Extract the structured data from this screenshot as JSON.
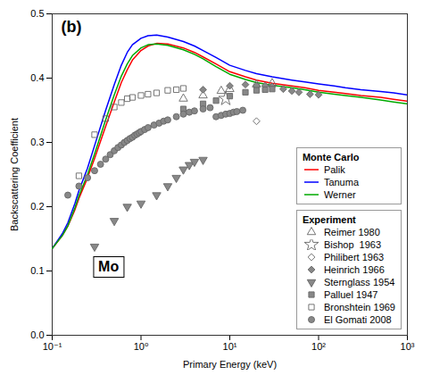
{
  "chart_data": {
    "type": "line",
    "xlabel": "Primary Energy (keV)",
    "ylabel": "Backscattering Coefficient",
    "annotations": [
      "(b)",
      "Mo"
    ],
    "log": "x",
    "xlim": [
      0.1,
      1000
    ],
    "xticks": [
      {
        "value": 0.1,
        "label": "10⁻¹"
      },
      {
        "value": 1,
        "label": "10⁰"
      },
      {
        "value": 10,
        "label": "10¹"
      },
      {
        "value": 100,
        "label": "10²"
      },
      {
        "value": 1000,
        "label": "10³"
      }
    ],
    "ylim": [
      0.0,
      0.5
    ],
    "yticks": [
      {
        "value": 0,
        "label": "0.0"
      },
      0.1,
      0.2,
      0.3,
      0.4,
      0.5
    ],
    "grid": false,
    "legend": "lower right",
    "series": [
      {
        "name": "Palik",
        "group": "Monte Carlo",
        "type": "line",
        "color": "#ff0000",
        "x": [
          0.1,
          0.13,
          0.15,
          0.18,
          0.2,
          0.25,
          0.3,
          0.4,
          0.5,
          0.6,
          0.7,
          0.8,
          1.0,
          1.2,
          1.5,
          2.0,
          3.0,
          4.0,
          5.0,
          7.0,
          10.0,
          15.0,
          20.0,
          30.0,
          50.0,
          70.0,
          100.0,
          150.0,
          200.0,
          300.0,
          500.0,
          700.0,
          1000.0
        ],
        "values": [
          0.135,
          0.155,
          0.17,
          0.195,
          0.213,
          0.245,
          0.275,
          0.325,
          0.363,
          0.393,
          0.413,
          0.428,
          0.443,
          0.45,
          0.454,
          0.453,
          0.447,
          0.44,
          0.433,
          0.422,
          0.41,
          0.402,
          0.397,
          0.392,
          0.388,
          0.385,
          0.381,
          0.378,
          0.376,
          0.373,
          0.37,
          0.367,
          0.364
        ]
      },
      {
        "name": "Tanuma",
        "group": "Monte Carlo",
        "type": "line",
        "color": "#0000ff",
        "x": [
          0.1,
          0.13,
          0.15,
          0.18,
          0.2,
          0.25,
          0.3,
          0.4,
          0.5,
          0.6,
          0.7,
          0.8,
          1.0,
          1.2,
          1.5,
          2.0,
          3.0,
          4.0,
          5.0,
          7.0,
          10.0,
          15.0,
          20.0,
          30.0,
          50.0,
          70.0,
          100.0,
          150.0,
          200.0,
          300.0,
          500.0,
          700.0,
          1000.0
        ],
        "values": [
          0.135,
          0.158,
          0.175,
          0.205,
          0.225,
          0.26,
          0.295,
          0.35,
          0.39,
          0.42,
          0.44,
          0.452,
          0.462,
          0.466,
          0.467,
          0.464,
          0.457,
          0.45,
          0.443,
          0.432,
          0.42,
          0.412,
          0.407,
          0.402,
          0.397,
          0.394,
          0.391,
          0.388,
          0.385,
          0.382,
          0.379,
          0.377,
          0.374
        ]
      },
      {
        "name": "Werner",
        "group": "Monte Carlo",
        "type": "line",
        "color": "#00aa00",
        "x": [
          0.1,
          0.13,
          0.15,
          0.18,
          0.2,
          0.25,
          0.3,
          0.4,
          0.5,
          0.6,
          0.7,
          0.8,
          1.0,
          1.2,
          1.5,
          2.0,
          3.0,
          4.0,
          5.0,
          7.0,
          10.0,
          15.0,
          20.0,
          30.0,
          50.0,
          70.0,
          100.0,
          150.0,
          200.0,
          300.0,
          500.0,
          700.0,
          1000.0
        ],
        "values": [
          0.135,
          0.155,
          0.17,
          0.198,
          0.217,
          0.25,
          0.282,
          0.335,
          0.374,
          0.403,
          0.422,
          0.435,
          0.447,
          0.452,
          0.453,
          0.451,
          0.444,
          0.437,
          0.43,
          0.418,
          0.406,
          0.398,
          0.393,
          0.389,
          0.385,
          0.382,
          0.378,
          0.375,
          0.373,
          0.37,
          0.366,
          0.363,
          0.36
        ]
      },
      {
        "name": "Reimer 1980",
        "group": "Experiment",
        "type": "scatter",
        "marker": "triangle-up-open",
        "color": "#666666",
        "x": [
          3.0,
          5.0,
          8.0,
          10.0,
          20.0,
          30.0
        ],
        "values": [
          0.368,
          0.373,
          0.38,
          0.383,
          0.39,
          0.392
        ]
      },
      {
        "name": "Bishop  1963",
        "group": "Experiment",
        "type": "scatter",
        "marker": "star-open",
        "color": "#666666",
        "x": [
          9.0
        ],
        "values": [
          0.368
        ]
      },
      {
        "name": "Philibert 1963",
        "group": "Experiment",
        "type": "scatter",
        "marker": "diamond-open",
        "color": "#666666",
        "x": [
          20.0
        ],
        "values": [
          0.333
        ]
      },
      {
        "name": "Heinrich 1966",
        "group": "Experiment",
        "type": "scatter",
        "marker": "diamond",
        "color": "#888888",
        "x": [
          5.0,
          10.0,
          15.0,
          20.0,
          25.0,
          30.0,
          40.0,
          50.0,
          60.0,
          80.0,
          100.0
        ],
        "values": [
          0.382,
          0.388,
          0.39,
          0.388,
          0.388,
          0.387,
          0.383,
          0.38,
          0.378,
          0.375,
          0.374
        ]
      },
      {
        "name": "Sternglass 1954",
        "group": "Experiment",
        "type": "scatter",
        "marker": "triangle-down",
        "color": "#888888",
        "x": [
          0.3,
          0.5,
          0.7,
          1.0,
          1.5,
          2.0,
          2.5,
          3.0,
          3.5,
          4.0,
          5.0
        ],
        "values": [
          0.138,
          0.178,
          0.2,
          0.205,
          0.218,
          0.232,
          0.245,
          0.258,
          0.265,
          0.27,
          0.273
        ]
      },
      {
        "name": "Palluel 1947",
        "group": "Experiment",
        "type": "scatter",
        "marker": "square",
        "color": "#888888",
        "x": [
          3.0,
          5.0,
          7.0,
          10.0,
          15.0,
          20.0,
          25.0,
          30.0
        ],
        "values": [
          0.352,
          0.36,
          0.365,
          0.372,
          0.378,
          0.381,
          0.382,
          0.383
        ]
      },
      {
        "name": "Bronshtein 1969",
        "group": "Experiment",
        "type": "scatter",
        "marker": "square-open",
        "color": "#666666",
        "x": [
          0.2,
          0.3,
          0.4,
          0.5,
          0.6,
          0.7,
          0.8,
          1.0,
          1.2,
          1.5,
          2.0,
          2.5,
          3.0
        ],
        "values": [
          0.248,
          0.312,
          0.337,
          0.355,
          0.362,
          0.368,
          0.37,
          0.373,
          0.375,
          0.377,
          0.381,
          0.382,
          0.384
        ]
      },
      {
        "name": "El Gomati 2008",
        "group": "Experiment",
        "type": "scatter",
        "marker": "circle",
        "color": "#888888",
        "x": [
          0.15,
          0.2,
          0.25,
          0.3,
          0.35,
          0.4,
          0.45,
          0.5,
          0.55,
          0.6,
          0.65,
          0.7,
          0.75,
          0.8,
          0.85,
          0.9,
          0.95,
          1.0,
          1.1,
          1.2,
          1.4,
          1.6,
          1.8,
          2.0,
          2.5,
          3.0,
          3.5,
          4.0,
          5.0,
          6.0,
          7.0,
          8.0,
          9.0,
          10.0,
          11.0,
          12.0,
          14.0
        ],
        "values": [
          0.218,
          0.232,
          0.245,
          0.256,
          0.266,
          0.274,
          0.281,
          0.287,
          0.292,
          0.296,
          0.3,
          0.303,
          0.306,
          0.308,
          0.311,
          0.313,
          0.315,
          0.317,
          0.32,
          0.323,
          0.327,
          0.33,
          0.333,
          0.335,
          0.34,
          0.344,
          0.347,
          0.349,
          0.352,
          0.354,
          0.34,
          0.342,
          0.344,
          0.345,
          0.347,
          0.348,
          0.35
        ]
      }
    ]
  }
}
